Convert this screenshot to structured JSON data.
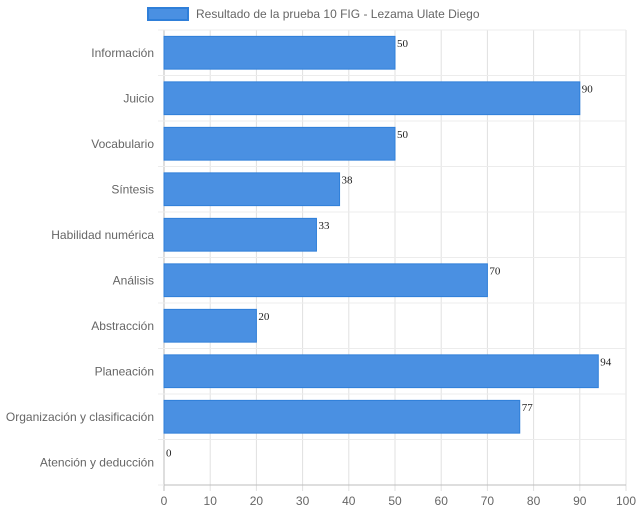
{
  "chart_data": {
    "type": "bar",
    "orientation": "horizontal",
    "categories": [
      "Información",
      "Juicio",
      "Vocabulario",
      "Síntesis",
      "Habilidad numérica",
      "Análisis",
      "Abstracción",
      "Planeación",
      "Organización y clasificación",
      "Atención y deducción"
    ],
    "series": [
      {
        "name": "Resultado de la prueba 10 FIG - Lezama Ulate Diego",
        "values": [
          50,
          90,
          50,
          38,
          33,
          70,
          20,
          94,
          77,
          0
        ],
        "color": "#4a90e2",
        "border_color": "#2f7fd9"
      }
    ],
    "xlim": [
      0,
      100
    ],
    "x_ticks": [
      0,
      10,
      20,
      30,
      40,
      50,
      60,
      70,
      80,
      90,
      100
    ],
    "grid": true,
    "legend_position": "top",
    "data_labels": true,
    "title": "",
    "xlabel": "",
    "ylabel": ""
  }
}
